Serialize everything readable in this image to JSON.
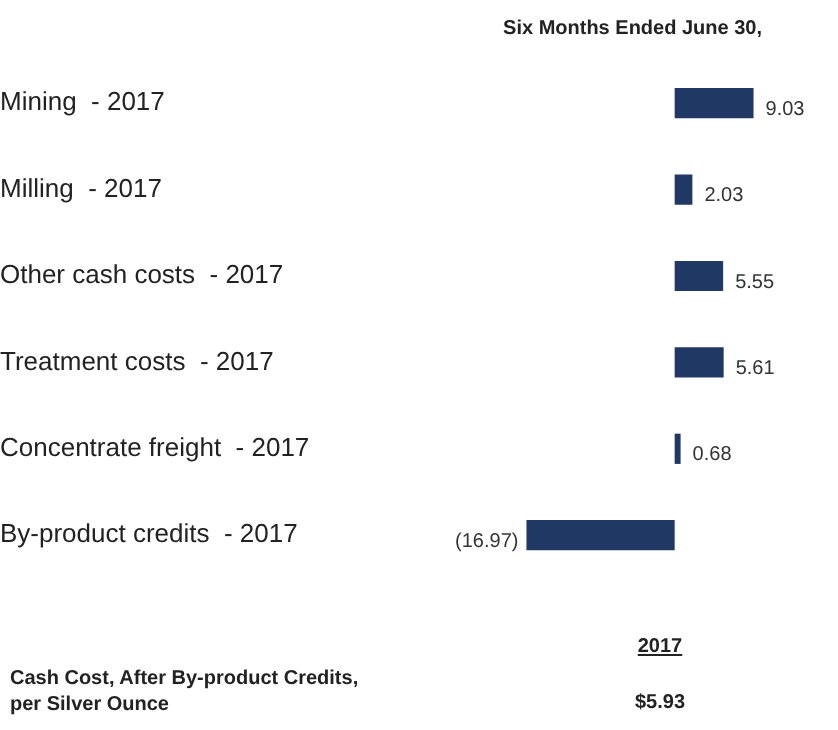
{
  "chart_data": {
    "type": "bar",
    "orientation": "horizontal",
    "title": "Six Months Ended June 30,",
    "categories": [
      "Mining  - 2017",
      "Milling  - 2017",
      "Other cash costs  - 2017",
      "Treatment costs  - 2017",
      "Concentrate freight  - 2017",
      "By-product credits  - 2017"
    ],
    "values": [
      9.03,
      2.03,
      5.55,
      5.61,
      0.68,
      -16.97
    ],
    "value_labels": [
      "9.03",
      "2.03",
      "5.55",
      "5.61",
      "0.68",
      "(16.97)"
    ],
    "color": "#1f3864",
    "annotations": [
      "2017",
      "Cash Cost, After By-product Credits, per Silver Ounce",
      "$5.93"
    ]
  }
}
